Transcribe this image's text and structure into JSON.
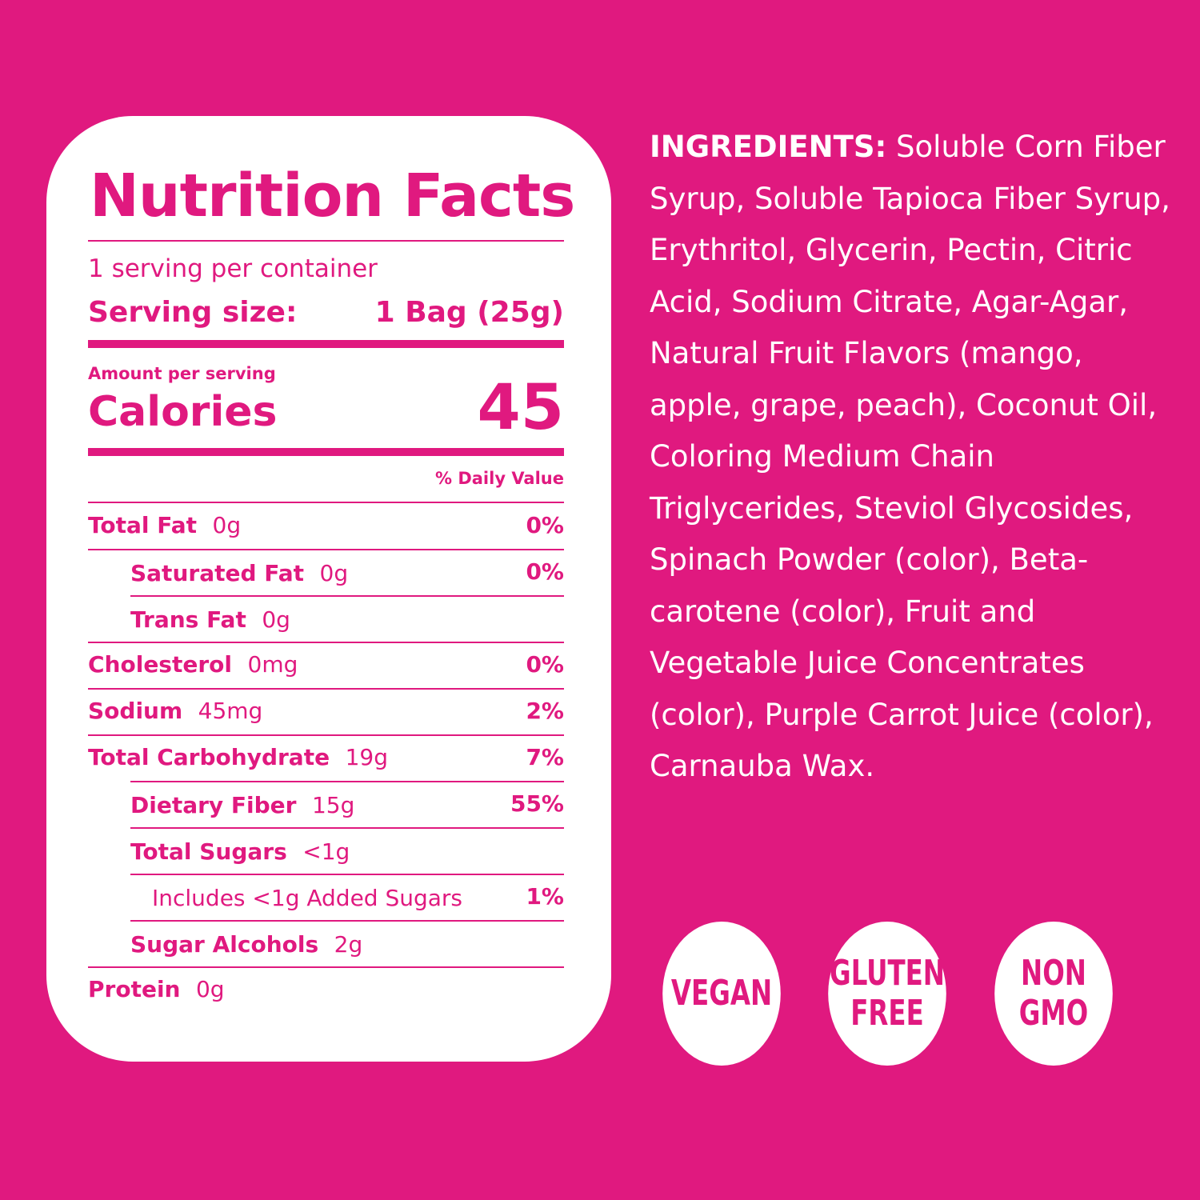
{
  "nutrition": {
    "title": "Nutrition Facts",
    "servings_per_container": "1 serving per container",
    "serving_size_label": "Serving size:",
    "serving_size_value": "1 Bag (25g)",
    "amount_per_serving": "Amount per serving",
    "calories_label": "Calories",
    "calories_value": "45",
    "daily_value_header": "% Daily Value",
    "rows": [
      {
        "name": "Total Fat",
        "amount": "0g",
        "dv": "0%"
      },
      {
        "name": "Saturated Fat",
        "amount": "0g",
        "dv": "0%"
      },
      {
        "name": "Trans Fat",
        "amount": "0g",
        "dv": ""
      },
      {
        "name": "Cholesterol",
        "amount": "0mg",
        "dv": "0%"
      },
      {
        "name": "Sodium",
        "amount": "45mg",
        "dv": "2%"
      },
      {
        "name": "Total Carbohydrate",
        "amount": "19g",
        "dv": "7%"
      },
      {
        "name": "Dietary Fiber",
        "amount": "15g",
        "dv": "55%"
      },
      {
        "name": "Total Sugars",
        "amount": "<1g",
        "dv": ""
      },
      {
        "name": "Includes <1g Added Sugars",
        "amount": "",
        "dv": "1%"
      },
      {
        "name": "Sugar Alcohols",
        "amount": "2g",
        "dv": ""
      },
      {
        "name": "Protein",
        "amount": "0g",
        "dv": ""
      }
    ]
  },
  "ingredients": {
    "label": "INGREDIENTS:",
    "text": "Soluble Corn Fiber Syrup, Soluble Tapioca Fiber Syrup, Erythritol, Glycerin, Pectin, Citric Acid, Sodium Citrate, Agar-Agar, Natural Fruit Flavors (mango, apple, grape, peach), Coconut Oil, Coloring Medium Chain Triglycerides, Steviol Glycosides, Spinach Powder (color), Beta-carotene (color), Fruit and Vegetable Juice Concentrates (color), Purple Carrot Juice (color), Carnauba Wax."
  },
  "badges": {
    "vegan": [
      "VEGAN"
    ],
    "gluten_free": [
      "GLUTEN",
      "FREE"
    ],
    "non_gmo": [
      "NON",
      "GMO"
    ]
  },
  "colors": {
    "brand_pink": "#e0197f",
    "panel": "#ffffff"
  }
}
